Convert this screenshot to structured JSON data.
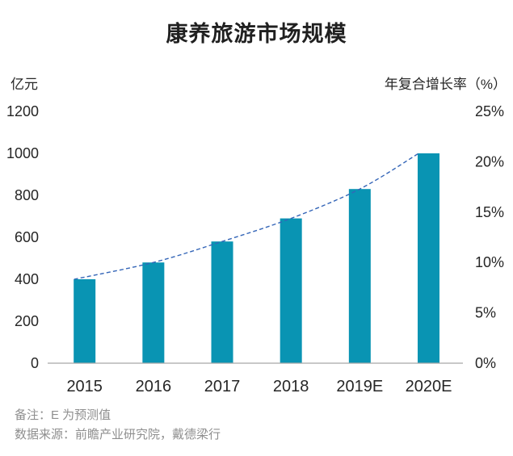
{
  "title": "康养旅游市场规模",
  "left_axis": {
    "unit_label": "亿元",
    "tick_labels": [
      "0",
      "200",
      "400",
      "600",
      "800",
      "1000",
      "1200"
    ]
  },
  "right_axis": {
    "unit_label": "年复合增长率（%）",
    "tick_labels": [
      "0%",
      "5%",
      "10%",
      "15%",
      "20%",
      "25%"
    ]
  },
  "footer": {
    "note": "备注：E 为预测值",
    "source": "数据来源：前瞻产业研究院，戴德梁行"
  },
  "colors": {
    "bar": "#0994b3",
    "trend_line": "#3566b8",
    "axis_line": "#a8a8a8",
    "text_dark": "#262626",
    "text_muted": "#8f8f8f"
  },
  "chart_data": {
    "type": "bar",
    "title": "康养旅游市场规模",
    "categories": [
      "2015",
      "2016",
      "2017",
      "2018",
      "2019E",
      "2020E"
    ],
    "series": [
      {
        "name": "市场规模（亿元）",
        "type": "bar",
        "axis": "left",
        "values": [
          400,
          480,
          580,
          690,
          830,
          1000
        ]
      },
      {
        "name": "增长趋势线",
        "type": "line",
        "style": "dashed",
        "follows": "bar-tops",
        "values": [
          400,
          480,
          580,
          690,
          830,
          1000
        ]
      }
    ],
    "ylabel_left": "亿元",
    "ylabel_right": "年复合增长率（%）",
    "ylim_left": [
      0,
      1200
    ],
    "ylim_right_percent": [
      0,
      25
    ],
    "left_ticks": [
      0,
      200,
      400,
      600,
      800,
      1000,
      1200
    ],
    "right_ticks_percent": [
      0,
      5,
      10,
      15,
      20,
      25
    ],
    "grid": false,
    "legend": false,
    "note": "备注：E 为预测值",
    "source": "数据来源：前瞻产业研究院，戴德梁行"
  }
}
